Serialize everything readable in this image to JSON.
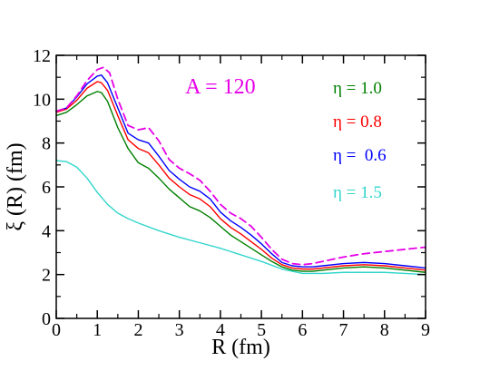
{
  "chart_data": {
    "type": "line",
    "xlabel": "R (fm)",
    "ylabel": "ξ (R) (fm)",
    "xlim": [
      0,
      9
    ],
    "ylim": [
      0,
      12
    ],
    "xticks": [
      "0",
      "1",
      "2",
      "3",
      "4",
      "5",
      "6",
      "7",
      "8",
      "9"
    ],
    "yticks": [
      "0",
      "2",
      "4",
      "6",
      "8",
      "10",
      "12"
    ],
    "annotation": {
      "text": "A = 120",
      "color": "#e600e6"
    },
    "legend_position": "right",
    "series": [
      {
        "name": "η = 1.0",
        "color": "#008000",
        "dashed": false,
        "x": [
          0,
          0.25,
          0.5,
          0.75,
          1.0,
          1.1,
          1.25,
          1.5,
          1.75,
          2.0,
          2.25,
          2.5,
          2.75,
          3.0,
          3.25,
          3.5,
          3.75,
          4.0,
          4.25,
          4.5,
          4.75,
          5.0,
          5.25,
          5.5,
          5.75,
          6.0,
          6.25,
          6.5,
          7.0,
          7.5,
          8.0,
          8.5,
          9.0
        ],
        "y": [
          9.25,
          9.4,
          9.75,
          10.15,
          10.35,
          10.3,
          9.9,
          8.7,
          7.75,
          7.1,
          6.85,
          6.4,
          5.9,
          5.5,
          5.1,
          4.9,
          4.6,
          4.2,
          3.8,
          3.5,
          3.2,
          2.9,
          2.6,
          2.35,
          2.2,
          2.15,
          2.15,
          2.2,
          2.3,
          2.35,
          2.3,
          2.2,
          2.1
        ]
      },
      {
        "name": "η = 0.8",
        "color": "#ff0000",
        "dashed": false,
        "x": [
          0,
          0.25,
          0.5,
          0.75,
          1.0,
          1.1,
          1.25,
          1.5,
          1.75,
          2.0,
          2.25,
          2.5,
          2.75,
          3.0,
          3.25,
          3.5,
          3.75,
          4.0,
          4.25,
          4.5,
          4.75,
          5.0,
          5.25,
          5.5,
          5.75,
          6.0,
          6.25,
          6.5,
          7.0,
          7.5,
          8.0,
          8.5,
          9.0
        ],
        "y": [
          9.4,
          9.55,
          9.95,
          10.5,
          10.8,
          10.75,
          10.4,
          9.25,
          8.15,
          7.75,
          7.55,
          7.0,
          6.4,
          6.0,
          5.65,
          5.45,
          5.1,
          4.55,
          4.15,
          3.85,
          3.5,
          3.15,
          2.75,
          2.45,
          2.3,
          2.25,
          2.25,
          2.3,
          2.4,
          2.45,
          2.4,
          2.3,
          2.2
        ]
      },
      {
        "name": "η =  0.6",
        "color": "#0000ff",
        "dashed": false,
        "x": [
          0,
          0.25,
          0.5,
          0.75,
          1.0,
          1.1,
          1.25,
          1.5,
          1.75,
          2.0,
          2.25,
          2.5,
          2.75,
          3.0,
          3.25,
          3.5,
          3.75,
          4.0,
          4.25,
          4.5,
          4.75,
          5.0,
          5.25,
          5.5,
          5.75,
          6.0,
          6.25,
          6.5,
          7.0,
          7.5,
          8.0,
          8.5,
          9.0
        ],
        "y": [
          9.45,
          9.6,
          10.1,
          10.7,
          11.05,
          11.1,
          10.75,
          9.6,
          8.45,
          8.15,
          8.0,
          7.4,
          6.75,
          6.35,
          6.0,
          5.8,
          5.45,
          4.85,
          4.45,
          4.15,
          3.8,
          3.4,
          2.95,
          2.55,
          2.4,
          2.35,
          2.35,
          2.4,
          2.5,
          2.55,
          2.5,
          2.4,
          2.3
        ]
      },
      {
        "name": "η = 1.5",
        "color": "#33d6cc",
        "dashed": false,
        "x": [
          0,
          0.25,
          0.5,
          0.75,
          1.0,
          1.25,
          1.5,
          1.75,
          2.0,
          2.5,
          3.0,
          3.5,
          4.0,
          4.5,
          5.0,
          5.5,
          6.0,
          6.5,
          7.0,
          7.5,
          8.0,
          8.5,
          9.0
        ],
        "y": [
          7.2,
          7.15,
          6.9,
          6.4,
          5.75,
          5.2,
          4.8,
          4.55,
          4.35,
          4.0,
          3.7,
          3.45,
          3.2,
          2.9,
          2.6,
          2.25,
          2.05,
          2.05,
          2.1,
          2.1,
          2.1,
          2.05,
          2.0
        ]
      },
      {
        "name": "",
        "color": "#e600e6",
        "dashed": true,
        "x": [
          0,
          0.25,
          0.5,
          0.75,
          1.0,
          1.15,
          1.3,
          1.5,
          1.75,
          2.0,
          2.25,
          2.5,
          2.75,
          3.0,
          3.25,
          3.5,
          3.75,
          4.0,
          4.25,
          4.5,
          4.75,
          5.0,
          5.25,
          5.5,
          5.75,
          6.0,
          6.25,
          6.5,
          7.0,
          7.5,
          8.0,
          8.5,
          9.0
        ],
        "y": [
          9.45,
          9.6,
          10.15,
          10.85,
          11.35,
          11.45,
          11.2,
          10.0,
          8.8,
          8.6,
          8.7,
          8.1,
          7.25,
          6.85,
          6.6,
          6.3,
          5.8,
          5.2,
          4.8,
          4.55,
          4.2,
          3.7,
          3.15,
          2.7,
          2.5,
          2.45,
          2.5,
          2.6,
          2.8,
          2.95,
          3.05,
          3.15,
          3.25
        ]
      }
    ]
  }
}
